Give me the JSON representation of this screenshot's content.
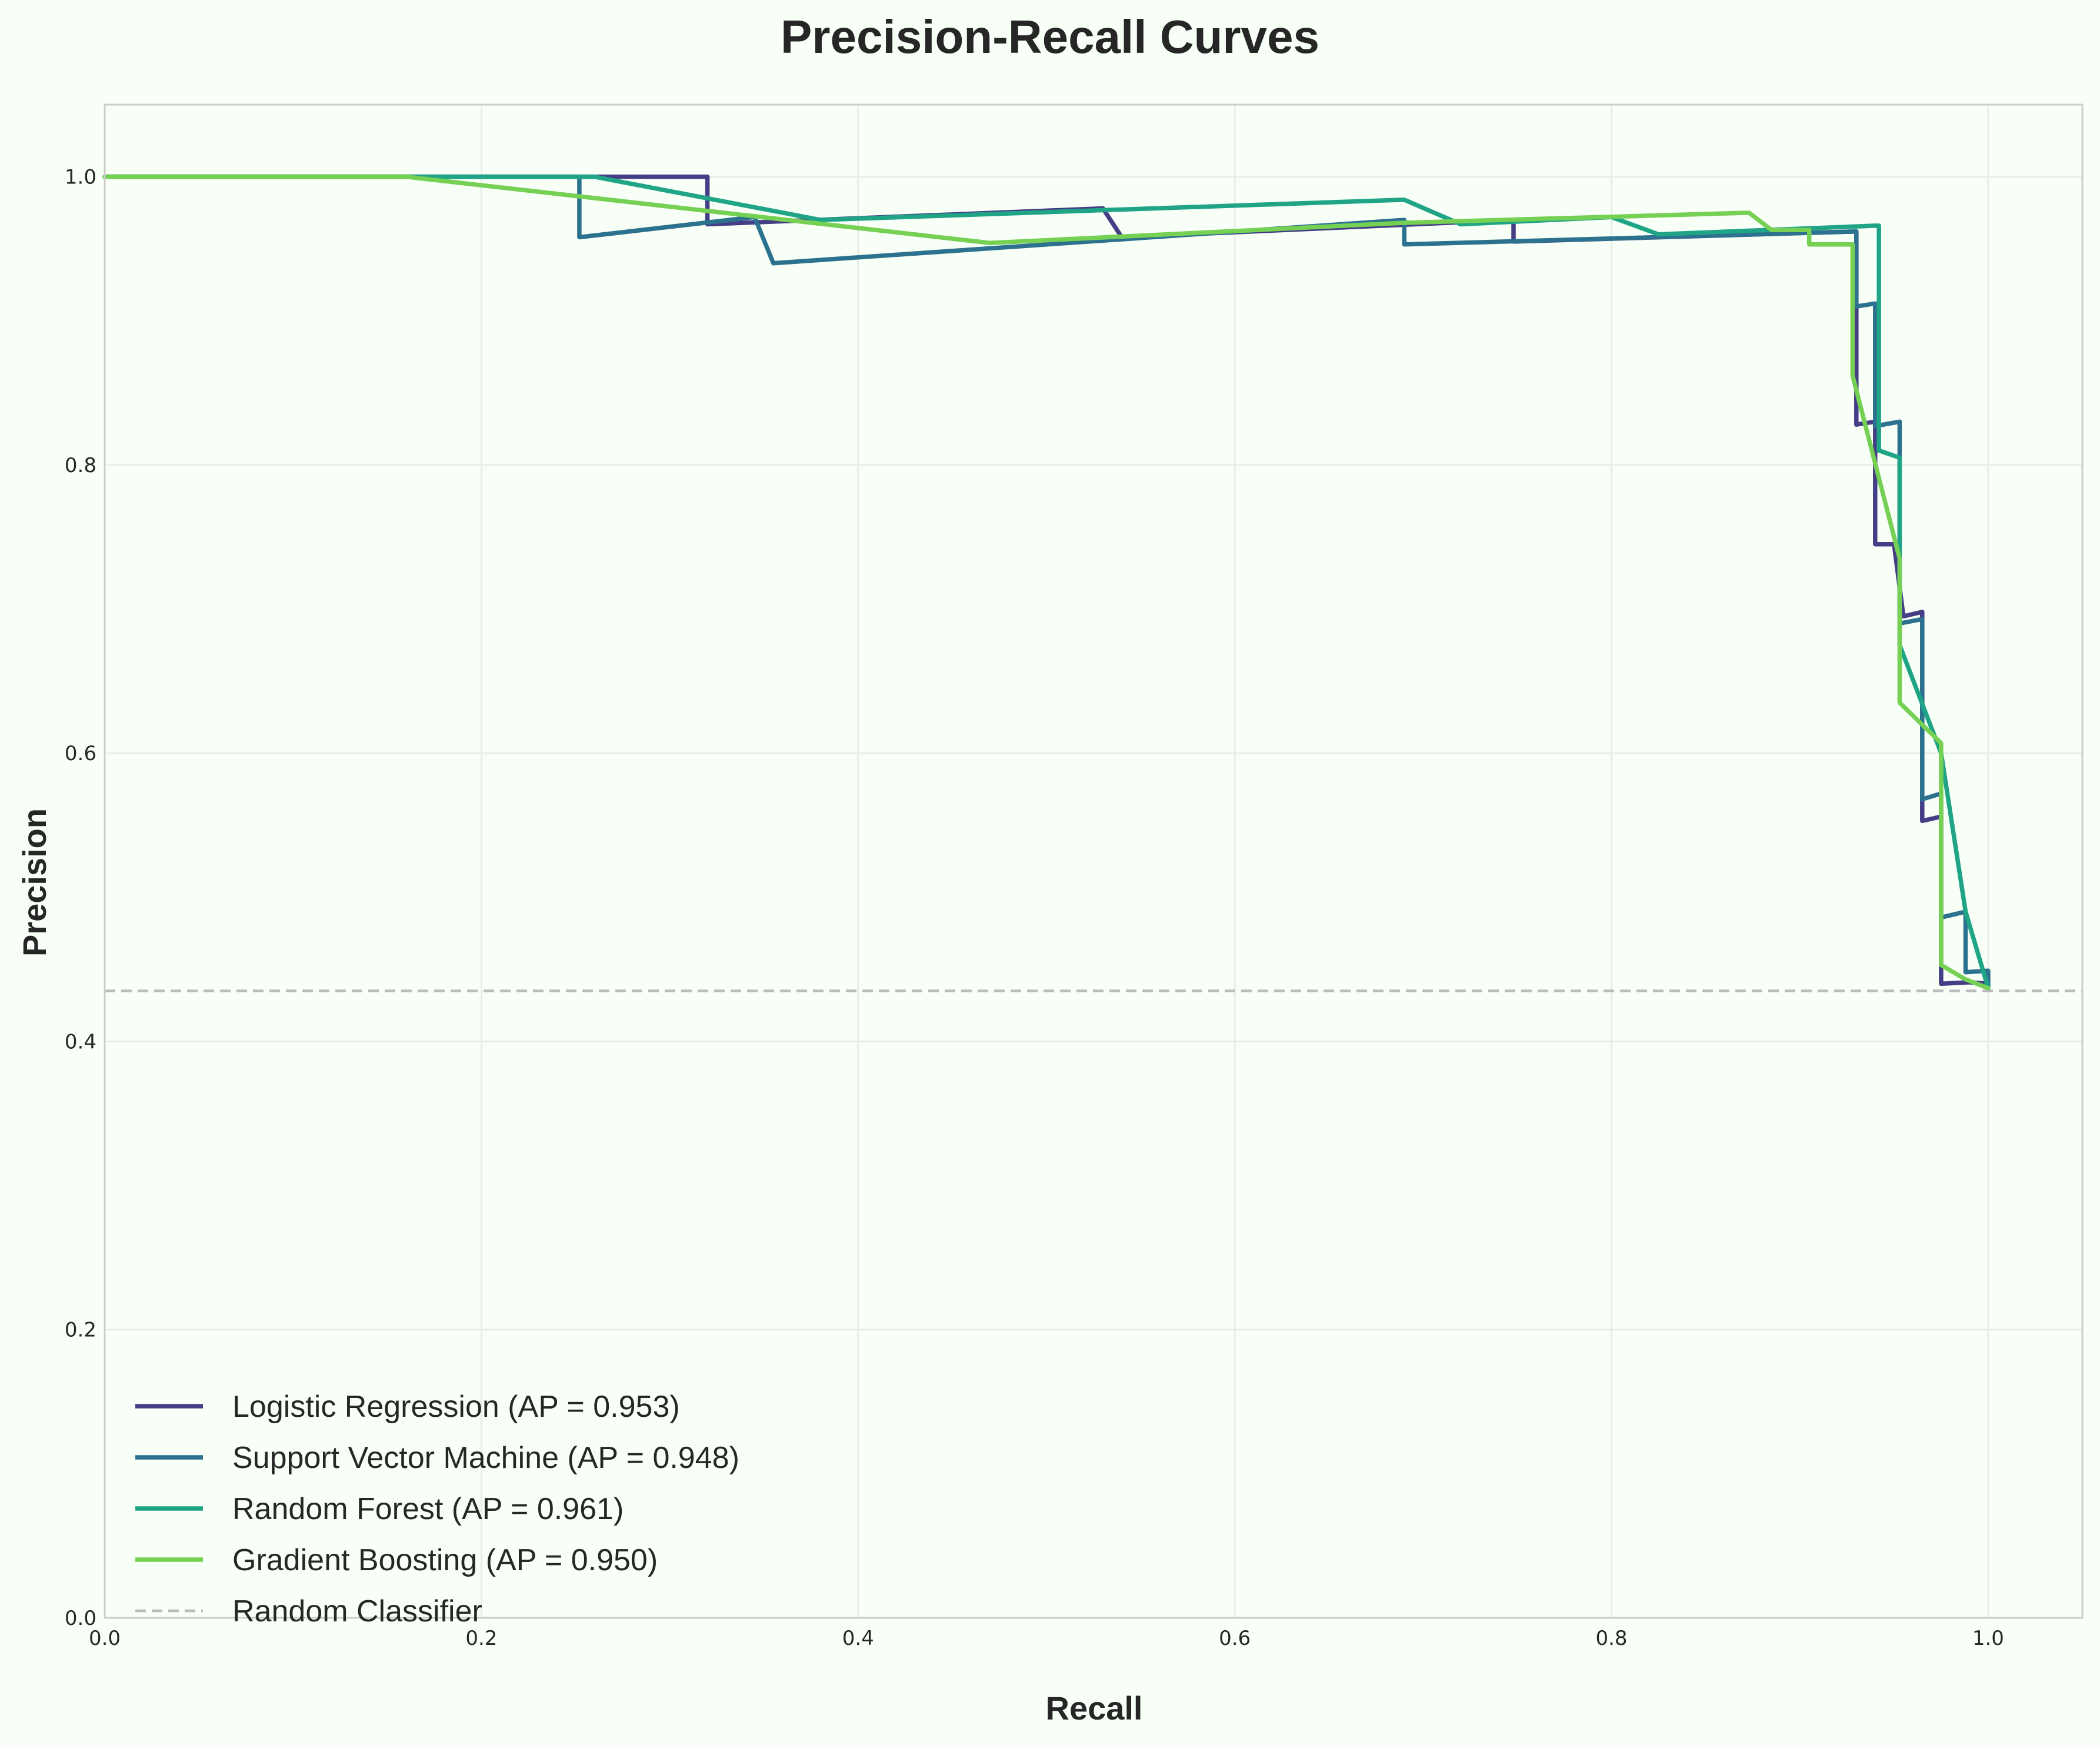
{
  "chart_data": {
    "type": "line",
    "title": "Precision-Recall Curves",
    "xlabel": "Recall",
    "ylabel": "Precision",
    "xlim": [
      0.0,
      1.05
    ],
    "ylim": [
      0.0,
      1.05
    ],
    "xticks": [
      "0.0",
      "0.2",
      "0.4",
      "0.6",
      "0.8",
      "1.0"
    ],
    "yticks": [
      "0.0",
      "0.2",
      "0.4",
      "0.6",
      "0.8",
      "1.0"
    ],
    "grid": true,
    "legend_position": "lower-left",
    "series": [
      {
        "name": "Logistic Regression (AP = 0.953)",
        "color": "#433e85",
        "x": [
          0.0,
          0.32,
          0.32,
          0.53,
          0.54,
          0.748,
          0.748,
          0.93,
          0.93,
          0.94,
          0.94,
          0.94,
          0.95,
          0.955,
          0.965,
          0.965,
          0.975,
          0.975,
          0.99,
          1.0
        ],
        "y": [
          1.0,
          1.0,
          0.967,
          0.978,
          0.958,
          0.97,
          0.955,
          0.962,
          0.828,
          0.83,
          0.83,
          0.745,
          0.745,
          0.695,
          0.698,
          0.553,
          0.556,
          0.44,
          0.441,
          0.44
        ]
      },
      {
        "name": "Support Vector Machine (AP = 0.948)",
        "color": "#2c728e",
        "x": [
          0.0,
          0.252,
          0.252,
          0.345,
          0.355,
          0.69,
          0.69,
          0.93,
          0.93,
          0.94,
          0.94,
          0.953,
          0.953,
          0.965,
          0.965,
          0.975,
          0.975,
          0.988,
          0.988,
          1.0,
          1.0
        ],
        "y": [
          1.0,
          1.0,
          0.958,
          0.972,
          0.94,
          0.97,
          0.953,
          0.962,
          0.91,
          0.912,
          0.827,
          0.83,
          0.69,
          0.693,
          0.568,
          0.572,
          0.486,
          0.49,
          0.448,
          0.449,
          0.438
        ]
      },
      {
        "name": "Random Forest (AP = 0.961)",
        "color": "#20a486",
        "x": [
          0.0,
          0.26,
          0.38,
          0.69,
          0.72,
          0.8,
          0.825,
          0.94,
          0.942,
          0.942,
          0.953,
          0.953,
          0.975,
          0.988,
          1.0
        ],
        "y": [
          1.0,
          1.0,
          0.97,
          0.984,
          0.967,
          0.972,
          0.96,
          0.966,
          0.966,
          0.81,
          0.805,
          0.675,
          0.6,
          0.49,
          0.437
        ]
      },
      {
        "name": "Gradient Boosting (AP = 0.950)",
        "color": "#75d054",
        "x": [
          0.0,
          0.16,
          0.47,
          0.69,
          0.873,
          0.885,
          0.905,
          0.905,
          0.928,
          0.928,
          0.953,
          0.953,
          0.975,
          0.975,
          0.988,
          1.0
        ],
        "y": [
          1.0,
          1.0,
          0.954,
          0.968,
          0.975,
          0.963,
          0.963,
          0.953,
          0.953,
          0.862,
          0.735,
          0.635,
          0.607,
          0.453,
          0.443,
          0.437
        ]
      }
    ],
    "reference_line": {
      "name": "Random Classifier",
      "color": "#bbbbbb",
      "y": 0.435,
      "style": "dashed"
    }
  }
}
